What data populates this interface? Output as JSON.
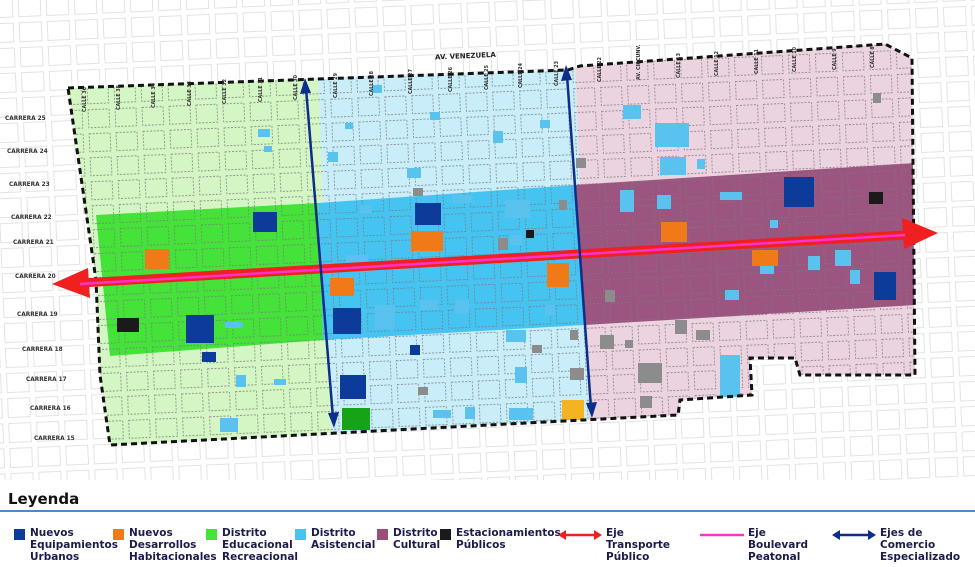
{
  "map": {
    "street_top": "AV. VENEZUELA",
    "carreras": [
      "CARRERA 25",
      "CARRERA 24",
      "CARRERA 23",
      "CARRERA 22",
      "CARRERA 21",
      "CARRERA 20",
      "CARRERA 19",
      "CARRERA 18",
      "CARRERA 17",
      "CARRERA 16",
      "CARRERA 15"
    ],
    "calles": [
      "CALLE 36",
      "CALLE 35",
      "CALLE 34",
      "CALLE 33",
      "CALLE 32",
      "CALLE 31",
      "CALLE 30",
      "CALLE 29",
      "CALLE 28",
      "CALLE 27",
      "CALLE 26",
      "CALLE 25",
      "CALLE 24",
      "CALLE 23",
      "CALLE 22",
      "AV. CIRCUNV."
    ],
    "colors": {
      "educacional_light": "#d4f5c4",
      "educacional_strong": "#45e23a",
      "asistencial_light": "#c9eefa",
      "asistencial_strong": "#45c4f2",
      "cultural_light": "#ecd3e0",
      "cultural_strong": "#9c5480"
    }
  },
  "legend": {
    "title": "Leyenda",
    "items": [
      {
        "label": "Nuevos\nEquipamientos\nUrbanos",
        "color": "#0d3b99"
      },
      {
        "label": "Nuevos\nDesarrollos\nHabitacionales",
        "color": "#f07a18"
      },
      {
        "label": "Distrito\nEducacional\nRecreacional",
        "color": "#45e23a"
      },
      {
        "label": "Distrito\nAsistencial",
        "color": "#45c4f2"
      },
      {
        "label": "Distrito\nCultural",
        "color": "#9c4d78"
      },
      {
        "label": "Estacionamientos\nPúblicos",
        "color": "#1a1a1a"
      }
    ],
    "lines": [
      {
        "label": "Eje Transporte\nPúblico",
        "color": "#f02020"
      },
      {
        "label": "Eje Boulevard\nPeatonal",
        "color": "#ff33cc"
      },
      {
        "label": "Ejes de Comercio\nEspecializado",
        "color": "#0d2d8a"
      }
    ]
  }
}
